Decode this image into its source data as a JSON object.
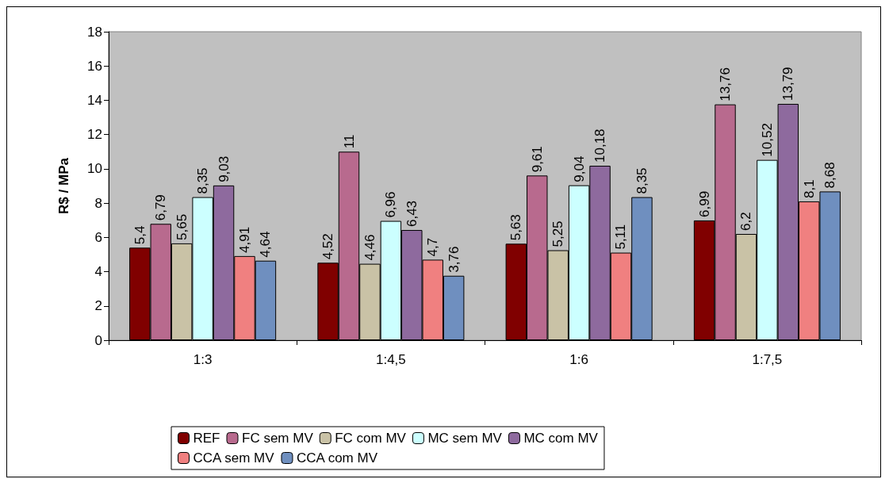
{
  "chart_data": {
    "type": "bar",
    "ylabel": "R$ / MPa",
    "categories": [
      "1:3",
      "1:4,5",
      "1:6",
      "1:7,5"
    ],
    "series": [
      {
        "name": "REF",
        "color": "#800000",
        "values": [
          5.4,
          4.52,
          5.63,
          6.99
        ],
        "value_labels": [
          "5,4",
          "4,52",
          "5,63",
          "6,99"
        ]
      },
      {
        "name": "FC sem MV",
        "color": "#b86a8e",
        "values": [
          6.79,
          11,
          9.61,
          13.76
        ],
        "value_labels": [
          "6,79",
          "11",
          "9,61",
          "13,76"
        ]
      },
      {
        "name": "FC com MV",
        "color": "#c9c2a6",
        "values": [
          5.65,
          4.46,
          5.25,
          6.2
        ],
        "value_labels": [
          "5,65",
          "4,46",
          "5,25",
          "6,2"
        ]
      },
      {
        "name": "MC sem MV",
        "color": "#ccffff",
        "values": [
          8.35,
          6.96,
          9.04,
          10.52
        ],
        "value_labels": [
          "8,35",
          "6,96",
          "9,04",
          "10,52"
        ]
      },
      {
        "name": "MC com MV",
        "color": "#8e6a9e",
        "values": [
          9.03,
          6.43,
          10.18,
          13.79
        ],
        "value_labels": [
          "9,03",
          "6,43",
          "10,18",
          "13,79"
        ]
      },
      {
        "name": "CCA sem MV",
        "color": "#f08080",
        "values": [
          4.91,
          4.7,
          5.11,
          8.1
        ],
        "value_labels": [
          "4,91",
          "4,7",
          "5,11",
          "8,1"
        ]
      },
      {
        "name": "CCA com MV",
        "color": "#6f8fbf",
        "values": [
          4.64,
          3.76,
          8.35,
          8.68
        ],
        "value_labels": [
          "4,64",
          "3,76",
          "8,35",
          "8,68"
        ]
      }
    ],
    "ylim": [
      0,
      18
    ],
    "yticks": [
      0,
      2,
      4,
      6,
      8,
      10,
      12,
      14,
      16,
      18
    ],
    "grid": false,
    "legend": "bottom"
  }
}
